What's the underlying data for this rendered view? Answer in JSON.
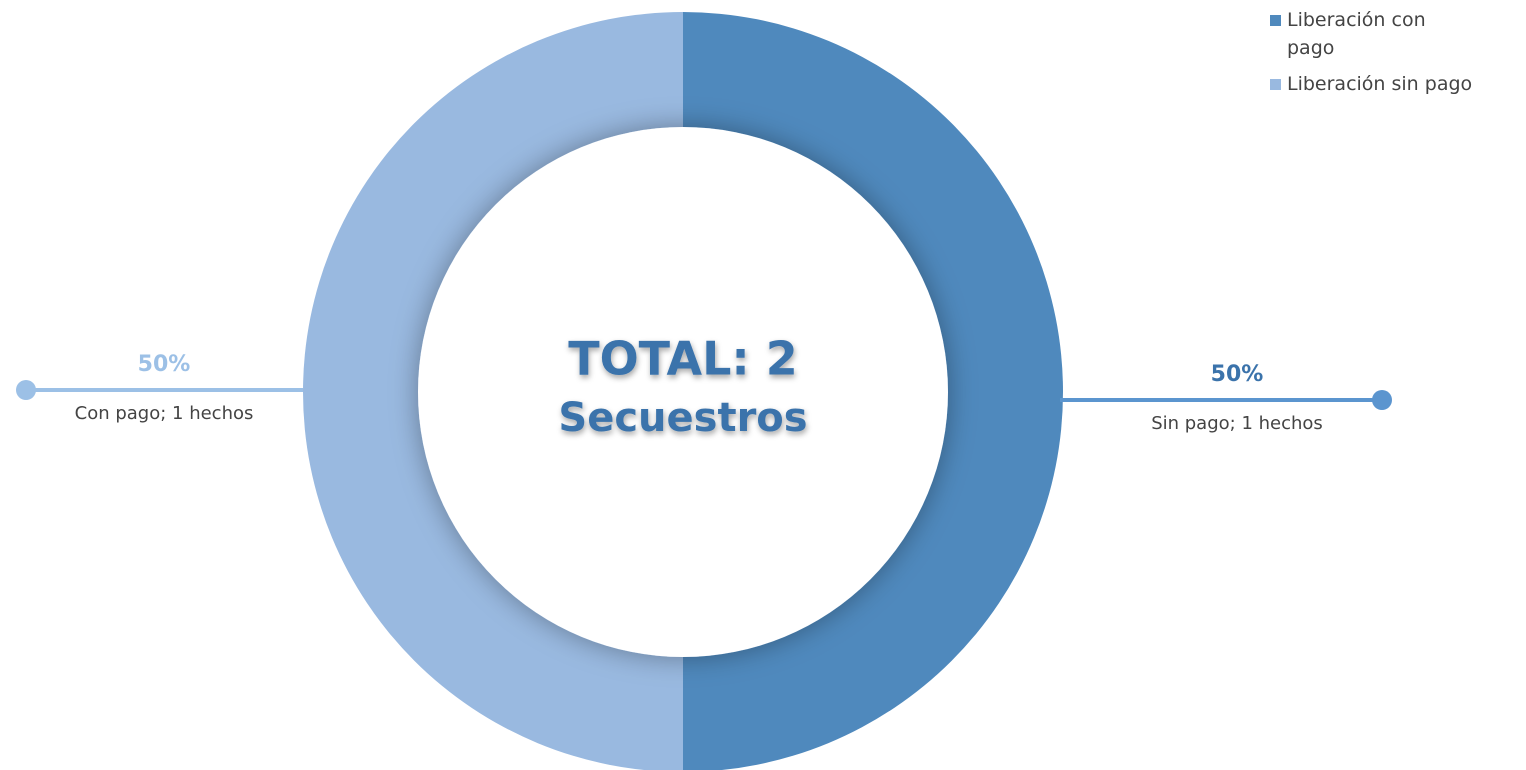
{
  "chart_data": {
    "type": "donut",
    "center_text": [
      "TOTAL: 2",
      "Secuestros"
    ],
    "categories": [
      "Liberación con pago",
      "Liberación sin pago"
    ],
    "values": [
      50,
      50
    ],
    "value_labels": [
      "50%",
      "50%"
    ],
    "labels": [
      "Sin pago; 1 hechos",
      "Con pago; 1 hechos"
    ],
    "colors": [
      "#4f89bd",
      "#99b9e0"
    ],
    "legend": "top-right"
  }
}
